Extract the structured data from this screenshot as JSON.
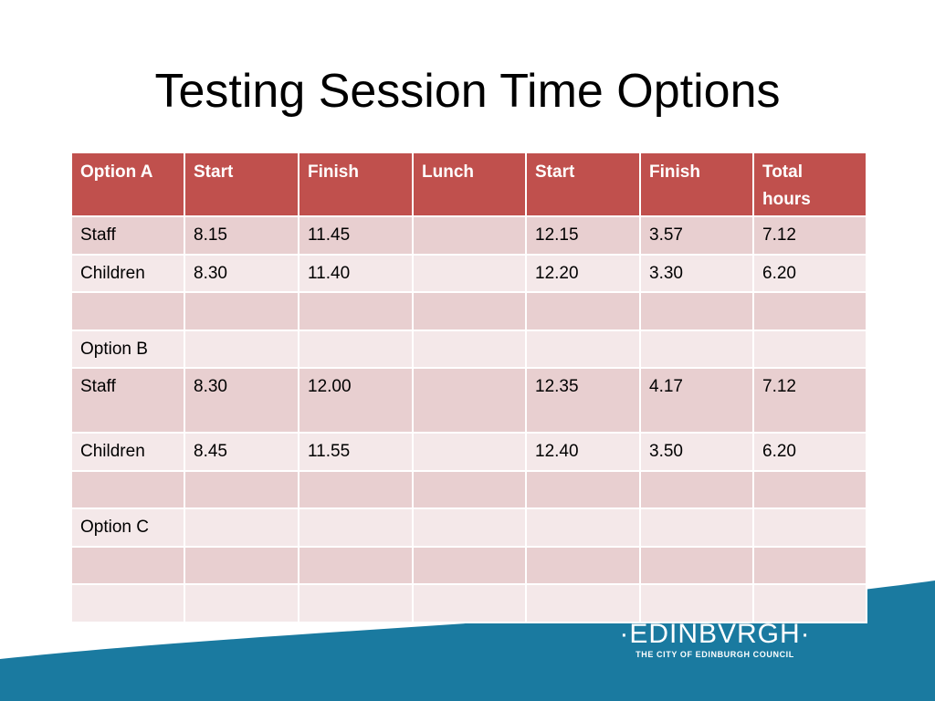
{
  "slide": {
    "title": "Testing Session Time Options"
  },
  "table": {
    "headers": [
      "Option A",
      "Start",
      "Finish",
      "Lunch",
      "Start",
      "Finish",
      "Total hours"
    ],
    "rows": [
      [
        "Staff",
        "8.15",
        "11.45",
        "",
        "12.15",
        "3.57",
        "7.12"
      ],
      [
        "Children",
        "8.30",
        "11.40",
        "",
        "12.20",
        "3.30",
        "6.20"
      ],
      [
        "",
        "",
        "",
        "",
        "",
        "",
        ""
      ],
      [
        "Option B",
        "",
        "",
        "",
        "",
        "",
        ""
      ],
      [
        "Staff",
        "8.30",
        "12.00",
        "",
        "12.35",
        "4.17",
        "7.12"
      ],
      [
        "Children",
        "8.45",
        "11.55",
        "",
        "12.40",
        "3.50",
        "6.20"
      ],
      [
        "",
        "",
        "",
        "",
        "",
        "",
        ""
      ],
      [
        "Option C",
        "",
        "",
        "",
        "",
        "",
        ""
      ],
      [
        "",
        "",
        "",
        "",
        "",
        "",
        ""
      ],
      [
        "",
        "",
        "",
        "",
        "",
        "",
        ""
      ]
    ]
  },
  "logo": {
    "wordmark": "·EDINBVRGH·",
    "tagline": "THE CITY OF EDINBURGH COUNCIL"
  },
  "colors": {
    "header_fill": "#c0504d",
    "row_dark": "#e8cfd0",
    "row_light": "#f4e8e9",
    "footer_wave": "#1a7aa0"
  }
}
